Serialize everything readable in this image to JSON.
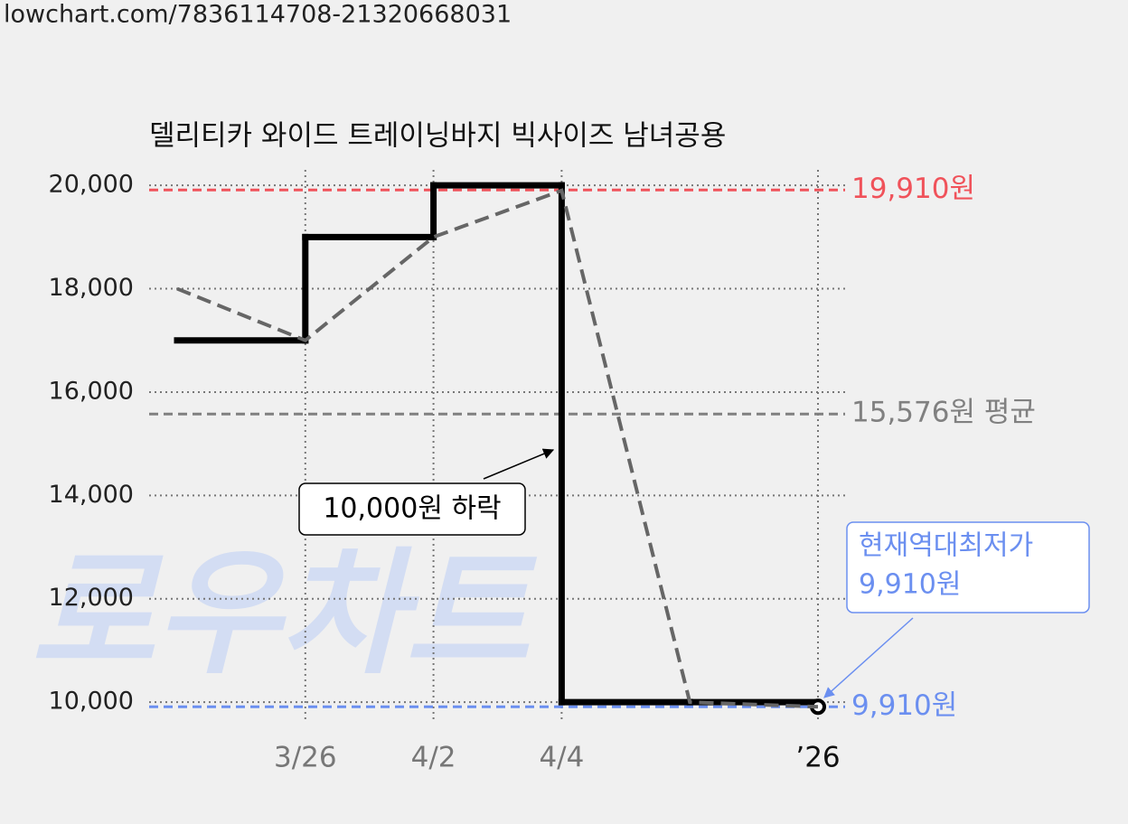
{
  "url": "lowchart.com/7836114708-21320668031",
  "chart_data": {
    "type": "line",
    "title": "델리티카 와이드 트레이닝바지 빅사이즈 남녀공용",
    "watermark": "로우차트",
    "categories": [
      null,
      "3/26",
      "4/2",
      "4/4",
      null,
      "’26"
    ],
    "series": [
      {
        "color": "#000000",
        "style": "step",
        "values": [
          17000,
          19000,
          20000,
          10000,
          10000,
          9910
        ]
      },
      {
        "color": "#666666",
        "style": "dashed",
        "values": [
          18000,
          17000,
          19000,
          19900,
          10000,
          9910
        ]
      }
    ],
    "ylim": [
      9600,
      20300
    ],
    "yticks": [
      {
        "value": 10000,
        "label": "10,000"
      },
      {
        "value": 12000,
        "label": "12,000"
      },
      {
        "value": 14000,
        "label": "14,000"
      },
      {
        "value": 16000,
        "label": "16,000"
      },
      {
        "value": 18000,
        "label": "18,000"
      },
      {
        "value": 20000,
        "label": "20,000"
      }
    ],
    "grid": true,
    "reference_lines": [
      {
        "value": 19910,
        "label": "19,910원",
        "color": "#f0525a"
      },
      {
        "value": 15576,
        "label": "15,576원 평균",
        "color": "#808080"
      },
      {
        "value": 9910,
        "label": "9,910원",
        "color": "#6b8ff0"
      }
    ],
    "annotations": [
      {
        "lines": [
          "10,000원 하락"
        ],
        "color": "#000000"
      },
      {
        "lines": [
          "현재역대최저가",
          "9,910원"
        ],
        "color": "#6b8ff0"
      }
    ]
  }
}
